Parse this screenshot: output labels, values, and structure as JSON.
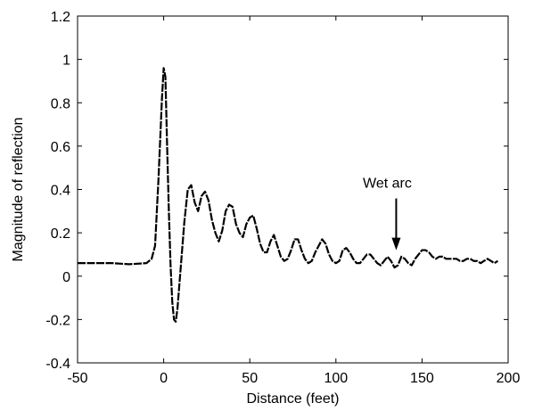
{
  "chart_data": {
    "type": "line",
    "title": "",
    "xlabel": "Distance (feet)",
    "ylabel": "Magnitude of reflection",
    "xlim": [
      -50,
      200
    ],
    "ylim": [
      -0.4,
      1.2
    ],
    "grid": false,
    "xticks": [
      -50,
      0,
      50,
      100,
      150,
      200
    ],
    "xtick_labels": [
      "-50",
      "0",
      "50",
      "100",
      "150",
      "200"
    ],
    "yticks": [
      -0.4,
      -0.2,
      0,
      0.2,
      0.4,
      0.6,
      0.8,
      1.0,
      1.2
    ],
    "ytick_labels": [
      "-0.4",
      "-0.2",
      "0",
      "0.2",
      "0.4",
      "0.6",
      "0.8",
      "1",
      "1.2"
    ],
    "line_color": "#000000",
    "series": [
      {
        "x": [
          -50,
          -40,
          -30,
          -20,
          -10,
          -7,
          -5,
          -3,
          -1,
          0,
          1,
          2,
          3,
          4,
          5,
          6,
          7,
          8,
          10,
          12,
          14,
          16,
          18,
          20,
          22,
          24,
          26,
          28,
          30,
          32,
          34,
          36,
          38,
          40,
          42,
          44,
          46,
          48,
          50,
          52,
          54,
          56,
          58,
          60,
          62,
          64,
          66,
          68,
          70,
          72,
          74,
          76,
          78,
          80,
          82,
          84,
          86,
          88,
          90,
          92,
          94,
          96,
          98,
          100,
          102,
          104,
          106,
          108,
          110,
          112,
          114,
          116,
          118,
          120,
          122,
          124,
          126,
          128,
          130,
          132,
          134,
          136,
          138,
          140,
          142,
          144,
          146,
          148,
          150,
          152,
          154,
          156,
          158,
          160,
          162,
          164,
          166,
          168,
          170,
          172,
          174,
          176,
          178,
          180,
          182,
          184,
          186,
          188,
          190,
          192,
          194
        ],
        "y": [
          0.06,
          0.06,
          0.06,
          0.055,
          0.06,
          0.08,
          0.14,
          0.45,
          0.82,
          0.96,
          0.92,
          0.6,
          0.3,
          0.05,
          -0.12,
          -0.2,
          -0.21,
          -0.15,
          0.05,
          0.25,
          0.4,
          0.42,
          0.34,
          0.3,
          0.37,
          0.39,
          0.35,
          0.26,
          0.2,
          0.16,
          0.21,
          0.3,
          0.33,
          0.32,
          0.24,
          0.2,
          0.18,
          0.24,
          0.27,
          0.28,
          0.22,
          0.15,
          0.11,
          0.11,
          0.16,
          0.19,
          0.14,
          0.09,
          0.07,
          0.08,
          0.12,
          0.17,
          0.17,
          0.12,
          0.08,
          0.06,
          0.07,
          0.11,
          0.14,
          0.17,
          0.15,
          0.1,
          0.07,
          0.06,
          0.07,
          0.12,
          0.13,
          0.11,
          0.08,
          0.06,
          0.06,
          0.08,
          0.1,
          0.1,
          0.08,
          0.06,
          0.05,
          0.07,
          0.09,
          0.07,
          0.04,
          0.05,
          0.09,
          0.08,
          0.06,
          0.05,
          0.08,
          0.1,
          0.12,
          0.12,
          0.11,
          0.09,
          0.08,
          0.09,
          0.09,
          0.08,
          0.08,
          0.08,
          0.08,
          0.07,
          0.07,
          0.08,
          0.08,
          0.07,
          0.07,
          0.06,
          0.07,
          0.08,
          0.07,
          0.06,
          0.07
        ]
      }
    ],
    "annotations": [
      {
        "text": "Wet arc",
        "arrow_to_x": 135,
        "arrow_to_y": 0.12
      }
    ]
  }
}
